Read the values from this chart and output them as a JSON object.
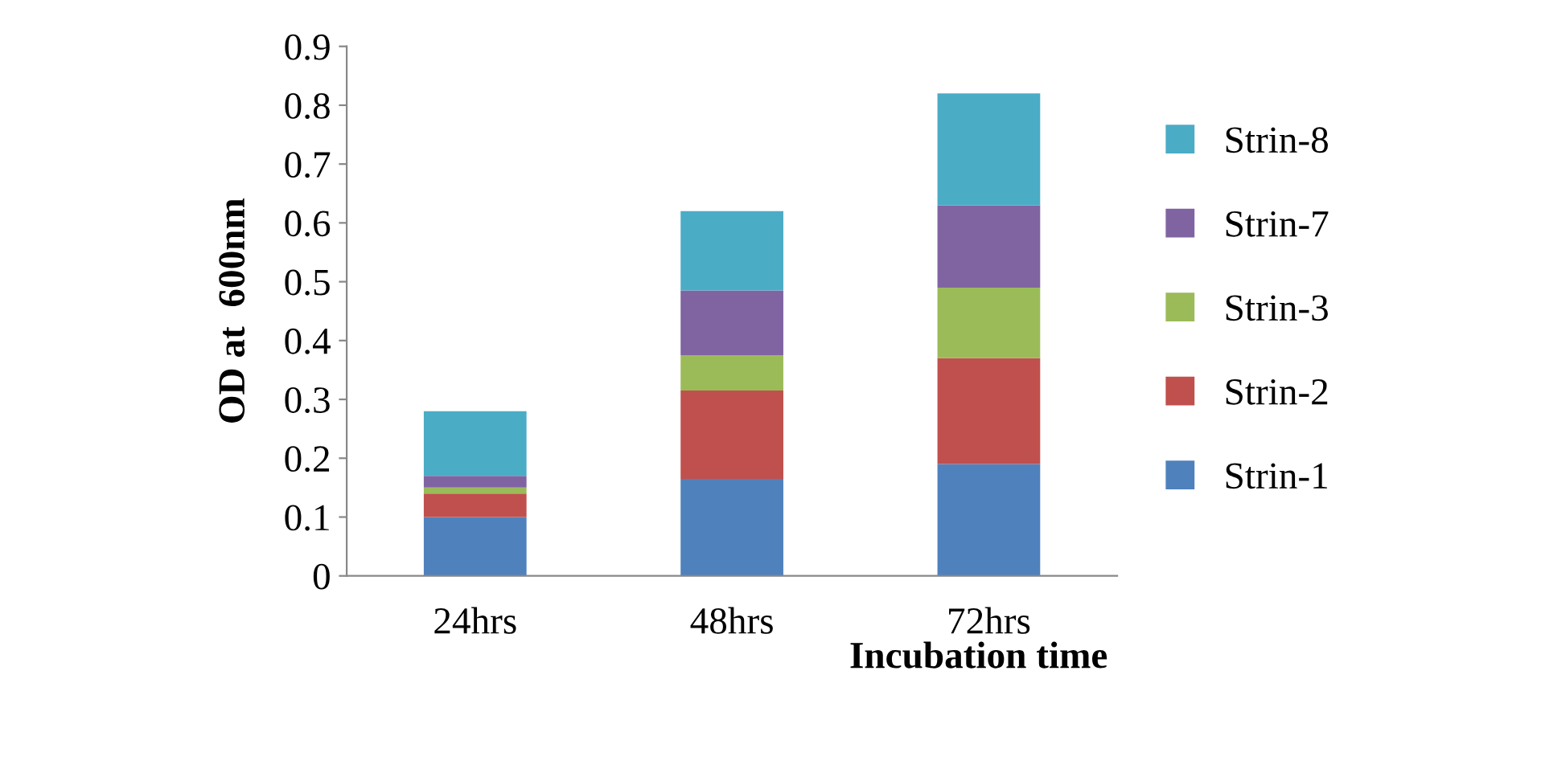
{
  "chart_data": {
    "type": "bar",
    "stacked": true,
    "xlabel": "Incubation time",
    "ylabel": "OD at  600nm",
    "categories": [
      "24hrs",
      "48hrs",
      "72hrs"
    ],
    "series": [
      {
        "name": "Strin-1",
        "color": "#4f81bd",
        "values": [
          0.1,
          0.165,
          0.19
        ]
      },
      {
        "name": "Strin-2",
        "color": "#c0504d",
        "values": [
          0.04,
          0.15,
          0.18
        ]
      },
      {
        "name": "Strin-3",
        "color": "#9bbb59",
        "values": [
          0.01,
          0.06,
          0.12
        ]
      },
      {
        "name": "Strin-7",
        "color": "#8064a2",
        "values": [
          0.02,
          0.11,
          0.14
        ]
      },
      {
        "name": "Strin-8",
        "color": "#4bacc6",
        "values": [
          0.11,
          0.135,
          0.19
        ]
      }
    ],
    "ylim": [
      0,
      0.9
    ],
    "yticks": [
      0,
      0.1,
      0.2,
      0.3,
      0.4,
      0.5,
      0.6,
      0.7,
      0.8,
      0.9
    ],
    "grid": false,
    "legend": "right"
  }
}
